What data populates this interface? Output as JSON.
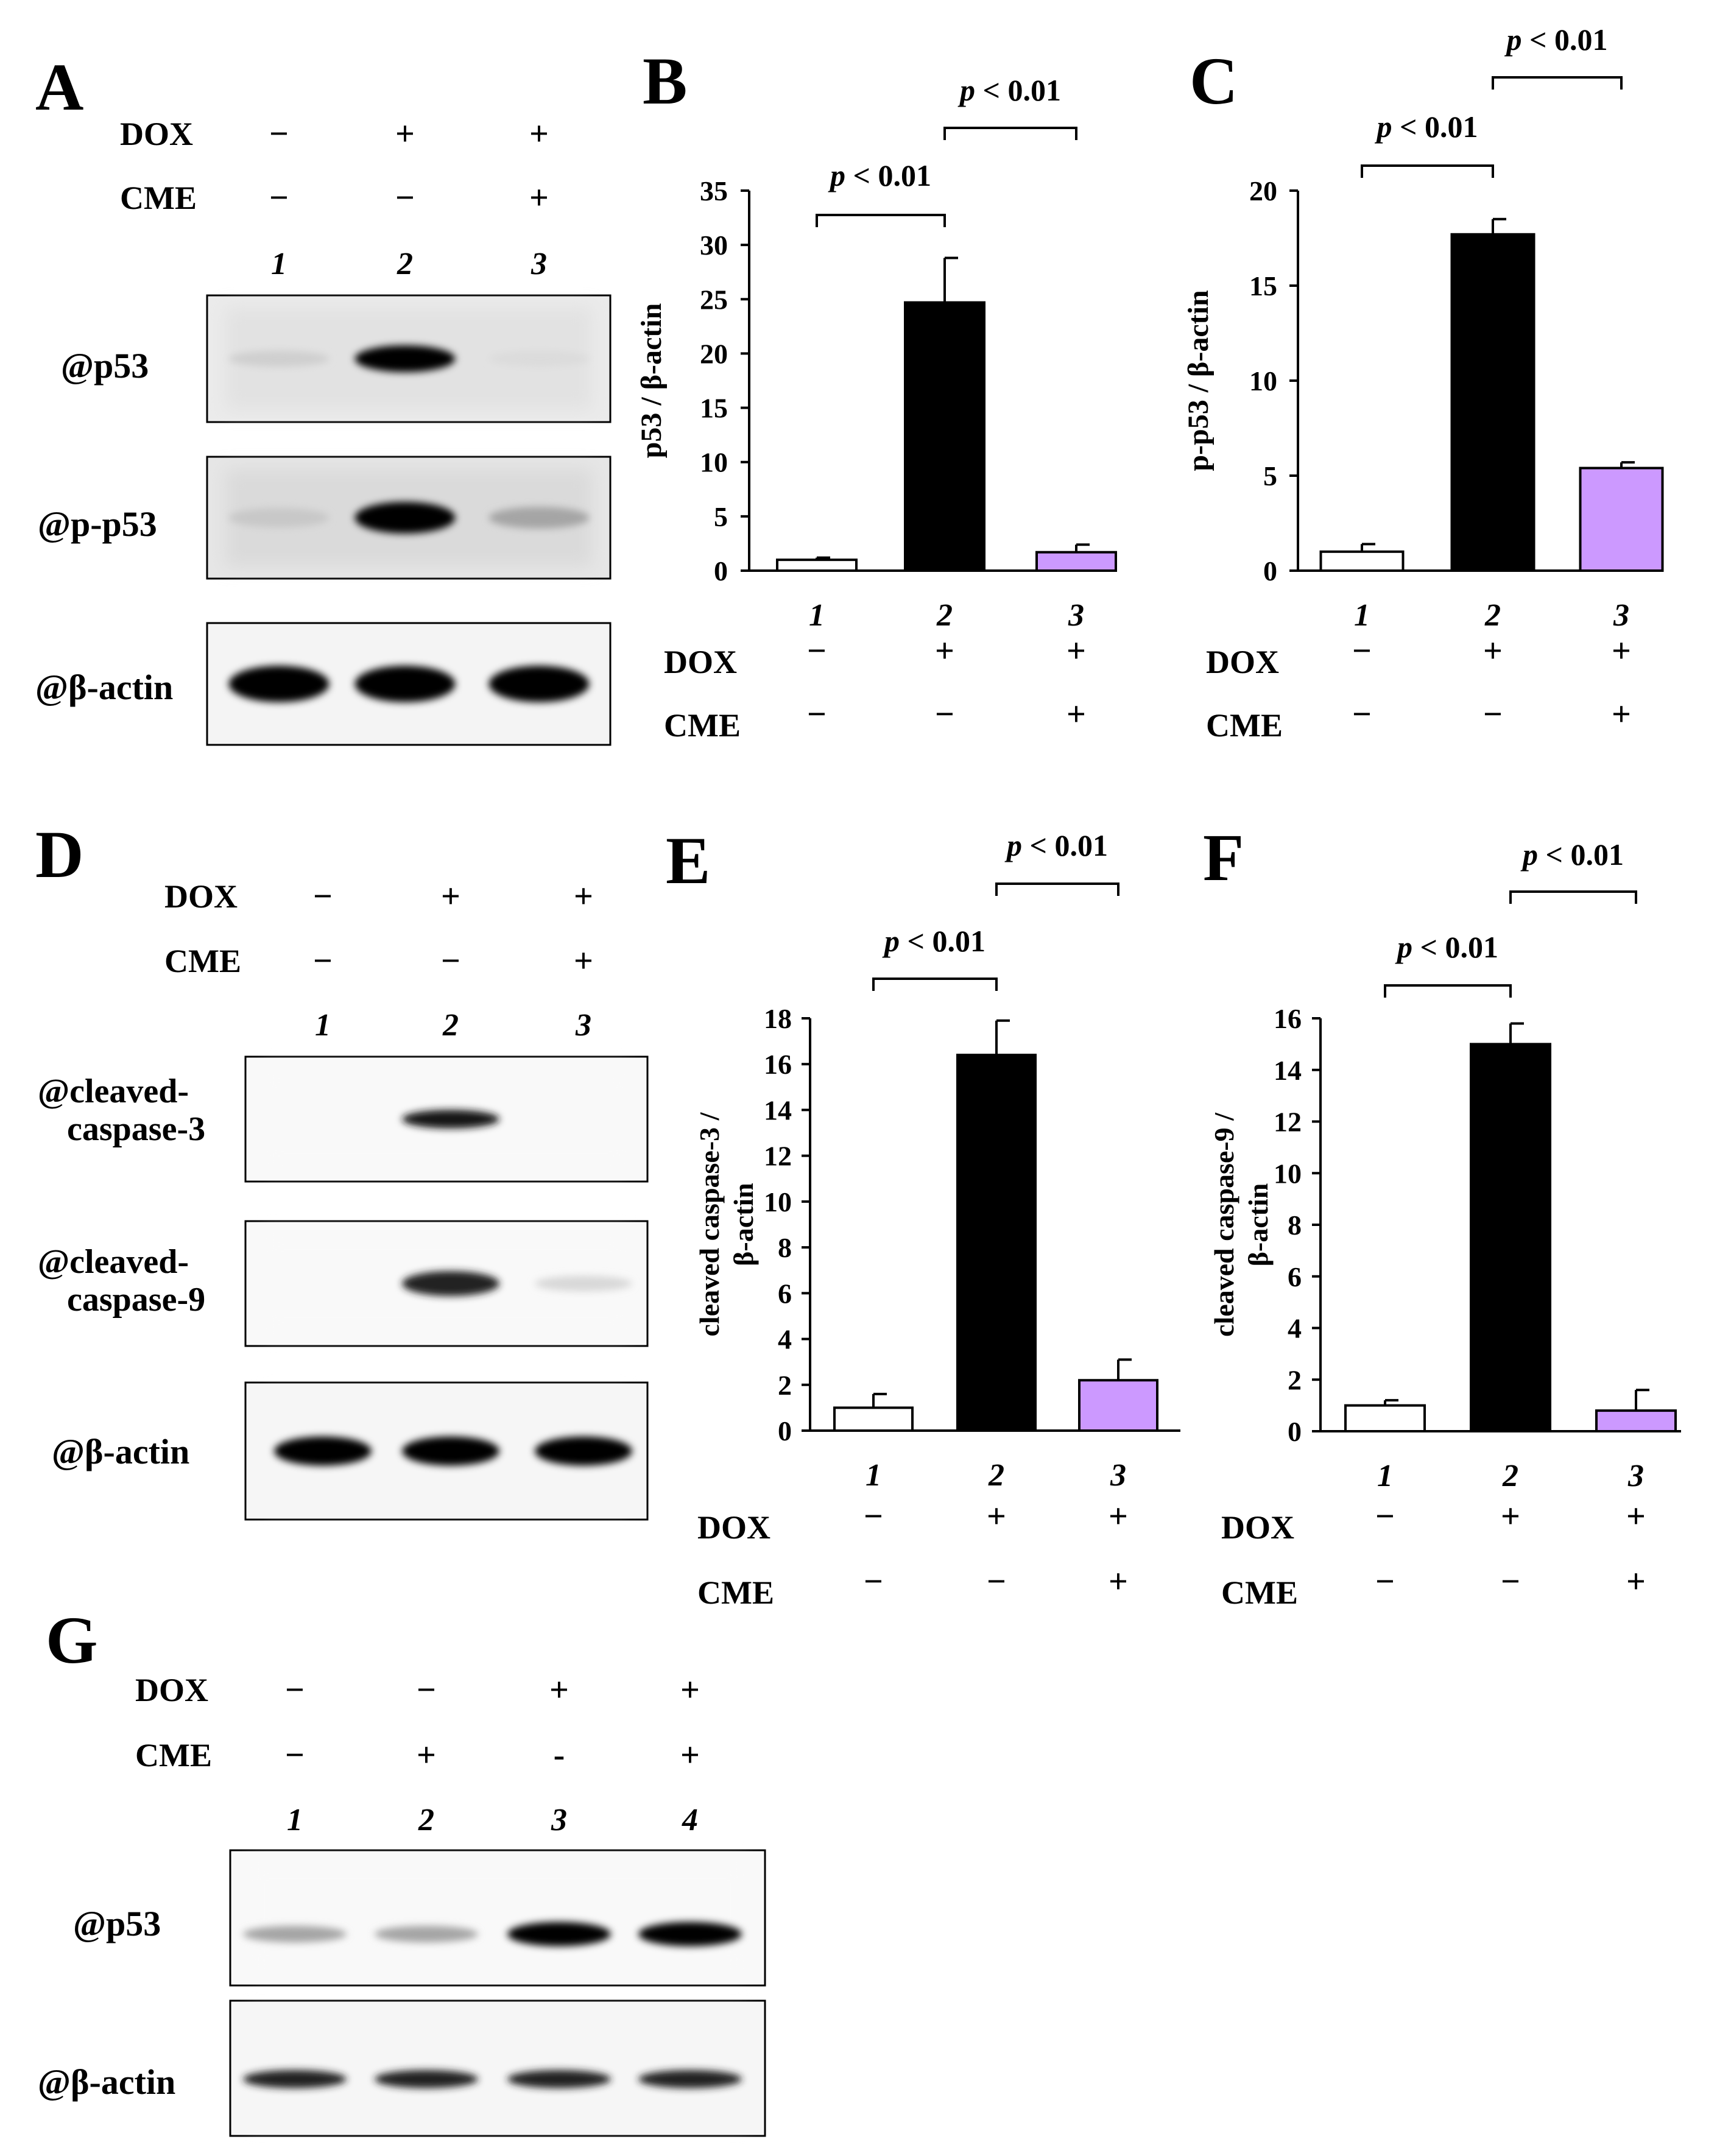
{
  "signs": {
    "plus": "+",
    "minus": "−",
    "dash": "-"
  },
  "treatment_labels": {
    "dox": "DOX",
    "cme": "CME"
  },
  "p_label": {
    "p": "p",
    "rest": " < 0.01"
  },
  "blot_A": {
    "panel_letter": "A",
    "lanes": [
      "1",
      "2",
      "3"
    ],
    "dox": [
      "−",
      "+",
      "+"
    ],
    "cme": [
      "−",
      "−",
      "+"
    ],
    "rows": [
      {
        "label": "@p53",
        "bands": [
          0.12,
          1.0,
          0.07
        ]
      },
      {
        "label": "@p-p53",
        "bands": [
          0.15,
          1.0,
          0.3
        ]
      },
      {
        "label": "@β-actin",
        "bands": [
          1.0,
          1.0,
          1.0
        ]
      }
    ]
  },
  "blot_D": {
    "panel_letter": "D",
    "lanes": [
      "1",
      "2",
      "3"
    ],
    "dox": [
      "−",
      "+",
      "+"
    ],
    "cme": [
      "−",
      "−",
      "+"
    ],
    "rows": [
      {
        "label": [
          "@cleaved-",
          "caspase-3"
        ],
        "bands": [
          0.0,
          0.9,
          0.0
        ]
      },
      {
        "label": [
          "@cleaved-",
          "caspase-9"
        ],
        "bands": [
          0.0,
          0.85,
          0.08
        ]
      },
      {
        "label": "@β-actin",
        "bands": [
          1.0,
          1.0,
          1.0
        ]
      }
    ]
  },
  "blot_G": {
    "panel_letter": "G",
    "lanes": [
      "1",
      "2",
      "3",
      "4"
    ],
    "dox": [
      "−",
      "−",
      "+",
      "+"
    ],
    "cme": [
      "−",
      "+",
      "-",
      "+"
    ],
    "rows": [
      {
        "label": "@p53",
        "bands": [
          0.3,
          0.3,
          1.0,
          1.0
        ]
      },
      {
        "label": "@β-actin",
        "bands": [
          0.85,
          0.85,
          0.85,
          0.85
        ]
      }
    ]
  },
  "chart_data": [
    {
      "panel_letter": "B",
      "type": "bar",
      "categories": [
        "1",
        "2",
        "3"
      ],
      "values": [
        1.0,
        24.7,
        1.7
      ],
      "errors": [
        0.2,
        4.1,
        0.7
      ],
      "ylabel": "p53 / β-actin",
      "ylim": [
        0,
        35
      ],
      "yticks": [
        0,
        5,
        10,
        15,
        20,
        25,
        30,
        35
      ],
      "bar_colors": [
        "#ffffff",
        "#000000",
        "#cc99ff"
      ],
      "dox": [
        "−",
        "+",
        "+"
      ],
      "cme": [
        "−",
        "−",
        "+"
      ],
      "comparisons": [
        {
          "pair": [
            1,
            2
          ]
        },
        {
          "pair": [
            2,
            3
          ]
        }
      ]
    },
    {
      "panel_letter": "C",
      "type": "bar",
      "categories": [
        "1",
        "2",
        "3"
      ],
      "values": [
        1.0,
        17.7,
        5.4
      ],
      "errors": [
        0.4,
        0.8,
        0.3
      ],
      "ylabel": "p-p53 / β-actin",
      "ylim": [
        0,
        20
      ],
      "yticks": [
        0,
        5,
        10,
        15,
        20
      ],
      "bar_colors": [
        "#ffffff",
        "#000000",
        "#cc99ff"
      ],
      "dox": [
        "−",
        "+",
        "+"
      ],
      "cme": [
        "−",
        "−",
        "+"
      ],
      "comparisons": [
        {
          "pair": [
            1,
            2
          ]
        },
        {
          "pair": [
            2,
            3
          ]
        }
      ]
    },
    {
      "panel_letter": "E",
      "type": "bar",
      "categories": [
        "1",
        "2",
        "3"
      ],
      "values": [
        1.0,
        16.4,
        2.2
      ],
      "errors": [
        0.6,
        1.5,
        0.9
      ],
      "ylabel": [
        "cleaved caspase-3 /",
        "β-actin"
      ],
      "ylim": [
        0,
        18
      ],
      "yticks": [
        0,
        2,
        4,
        6,
        8,
        10,
        12,
        14,
        16,
        18
      ],
      "bar_colors": [
        "#ffffff",
        "#000000",
        "#cc99ff"
      ],
      "dox": [
        "−",
        "+",
        "+"
      ],
      "cme": [
        "−",
        "−",
        "+"
      ],
      "comparisons": [
        {
          "pair": [
            1,
            2
          ]
        },
        {
          "pair": [
            2,
            3
          ]
        }
      ]
    },
    {
      "panel_letter": "F",
      "type": "bar",
      "categories": [
        "1",
        "2",
        "3"
      ],
      "values": [
        1.0,
        15.0,
        0.8
      ],
      "errors": [
        0.2,
        0.8,
        0.8
      ],
      "ylabel": [
        "cleaved caspase-9 /",
        "β-actin"
      ],
      "ylim": [
        0,
        16
      ],
      "yticks": [
        0,
        2,
        4,
        6,
        8,
        10,
        12,
        14,
        16
      ],
      "bar_colors": [
        "#ffffff",
        "#000000",
        "#cc99ff"
      ],
      "dox": [
        "−",
        "+",
        "+"
      ],
      "cme": [
        "−",
        "−",
        "+"
      ],
      "comparisons": [
        {
          "pair": [
            1,
            2
          ]
        },
        {
          "pair": [
            2,
            3
          ]
        }
      ]
    }
  ]
}
